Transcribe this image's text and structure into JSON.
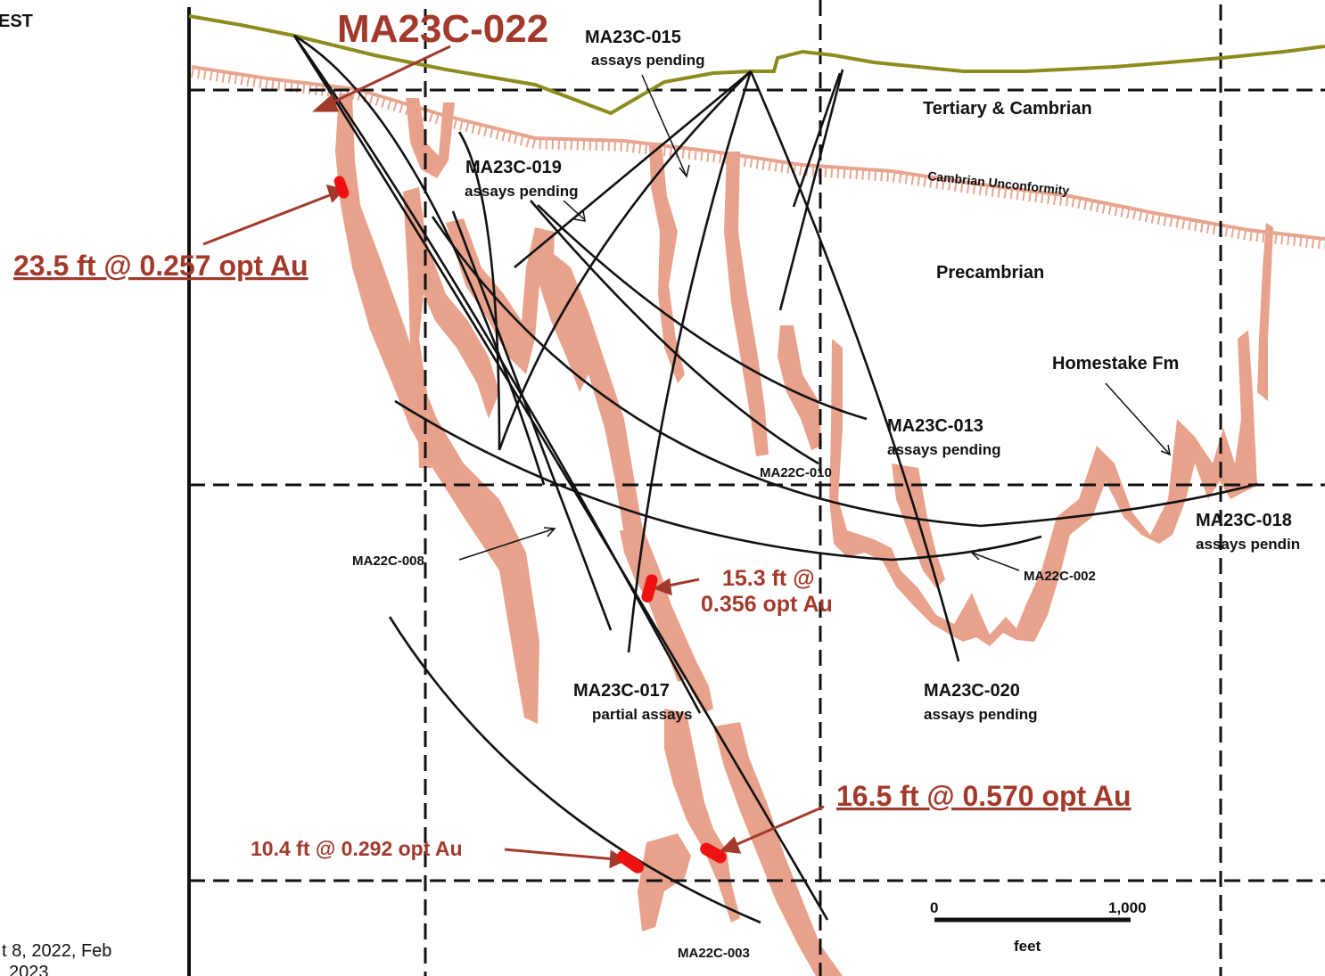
{
  "corner_text": {
    "top_left": "EST",
    "bottom_left_1": "t 8, 2022, Feb",
    "bottom_left_2": "2023"
  },
  "units": {
    "tertiary": "Tertiary & Cambrian",
    "unconformity": "Cambrian Unconformity",
    "precambrian": "Precambrian",
    "homestake": "Homestake Fm"
  },
  "drillholes": {
    "ma23c_022": "MA23C-022",
    "ma23c_015": "MA23C-015",
    "ma23c_015_status": "assays pending",
    "ma23c_019": "MA23C-019",
    "ma23c_019_status": "assays pending",
    "ma23c_013": "MA23C-013",
    "ma23c_013_status": "assays pending",
    "ma22c_010": "MA22C-010",
    "ma23c_018": "MA23C-018",
    "ma23c_018_status": "assays pendin",
    "ma22c_008": "MA22C-008",
    "ma22c_002": "MA22C-002",
    "ma23c_017": "MA23C-017",
    "ma23c_017_status": "partial assays",
    "ma23c_020": "MA23C-020",
    "ma23c_020_status": "assays pending",
    "ma22c_003": "MA22C-003"
  },
  "intercepts": {
    "i1": "23.5 ft @ 0.257 opt Au",
    "i2_line1": "15.3 ft @",
    "i2_line2": "0.356 opt Au",
    "i3": "16.5 ft @ 0.570 opt Au",
    "i4": "10.4 ft @ 0.292 opt Au"
  },
  "scale": {
    "zero": "0",
    "max": "1,000",
    "unit": "feet"
  },
  "colors": {
    "topography": "#8c8c1e",
    "unconformity": "#e7a590",
    "homestake": "#e8a28c",
    "intercept": "#ee1111",
    "annotation": "#a23a2c"
  }
}
